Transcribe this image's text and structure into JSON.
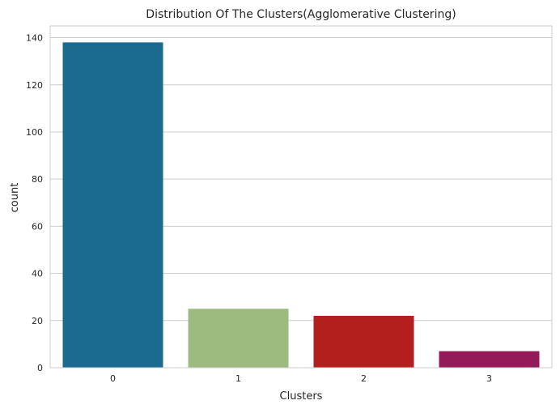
{
  "chart_data": {
    "type": "bar",
    "title": "Distribution Of The Clusters(Agglomerative Clustering)",
    "xlabel": "Clusters",
    "ylabel": "count",
    "categories": [
      "0",
      "1",
      "2",
      "3"
    ],
    "values": [
      138,
      25,
      22,
      7
    ],
    "colors": [
      "#1a6b8f",
      "#9dbb7f",
      "#b21f1c",
      "#951a5a"
    ],
    "ylim": [
      0,
      145
    ],
    "yticks": [
      0,
      20,
      40,
      60,
      80,
      100,
      120,
      140
    ],
    "grid": true,
    "grid_axis": "y",
    "legend": "none"
  }
}
